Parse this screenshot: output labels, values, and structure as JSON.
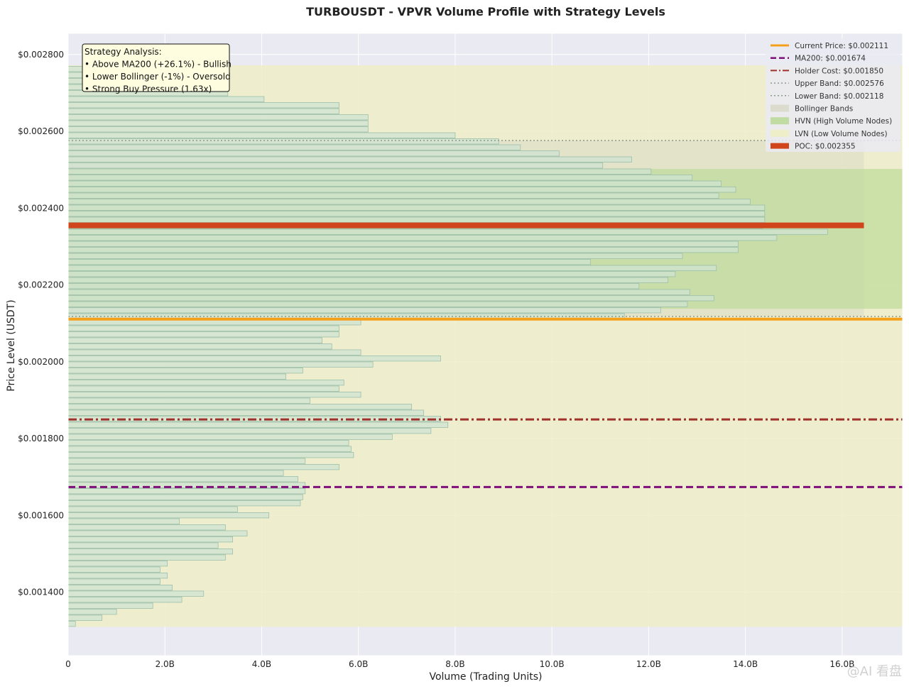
{
  "chart_data": {
    "type": "bar",
    "orientation": "horizontal",
    "title": "TURBOUSDT - VPVR Volume Profile with Strategy Levels",
    "xlabel": "Volume (Trading Units)",
    "ylabel": "Price Level (USDT)",
    "xlim": [
      0,
      17.25
    ],
    "ylim": [
      0.001235,
      0.002855
    ],
    "x_unit": "B",
    "xticks": [
      "0",
      "2.0B",
      "4.0B",
      "6.0B",
      "8.0B",
      "10.0B",
      "12.0B",
      "14.0B",
      "16.0B"
    ],
    "yticks": [
      "$0.001400",
      "$0.001600",
      "$0.001800",
      "$0.002000",
      "$0.002200",
      "$0.002400",
      "$0.002600",
      "$0.002800"
    ],
    "grid": true,
    "legend_position": "top-right",
    "bins": {
      "price_min": 0.00131,
      "price_max": 0.00277,
      "volumes": [
        0.15,
        0.7,
        1.0,
        1.75,
        2.35,
        2.8,
        2.15,
        1.9,
        2.05,
        1.9,
        2.05,
        3.25,
        3.4,
        3.1,
        3.4,
        3.7,
        3.25,
        2.3,
        4.15,
        3.5,
        4.8,
        4.85,
        4.9,
        4.9,
        4.75,
        4.45,
        5.6,
        4.9,
        5.9,
        5.85,
        5.8,
        6.7,
        7.5,
        7.85,
        7.7,
        7.35,
        7.1,
        5.0,
        6.05,
        5.6,
        5.7,
        4.5,
        4.85,
        6.3,
        7.7,
        6.05,
        5.45,
        5.25,
        5.6,
        5.6,
        6.05,
        11.5,
        12.25,
        12.8,
        13.35,
        12.85,
        11.8,
        12.4,
        12.55,
        13.4,
        10.8,
        12.7,
        13.85,
        13.85,
        14.65,
        15.7,
        14.35,
        14.4,
        14.4,
        14.4,
        14.1,
        13.45,
        13.8,
        13.5,
        12.9,
        12.05,
        11.05,
        11.65,
        10.15,
        9.35,
        8.9,
        8.0,
        6.2,
        6.2,
        6.2,
        5.6,
        5.6,
        4.05,
        3.3,
        3.3,
        2.95,
        2.75,
        2.7
      ]
    },
    "levels": {
      "current_price": 0.002111,
      "ma200": 0.001674,
      "holder_cost": 0.00185,
      "upper_band": 0.002576,
      "lower_band": 0.002118,
      "poc": 0.002355,
      "poc_volume_extent": 16.45
    },
    "zones": {
      "hvn": [
        0.002138,
        0.002502
      ],
      "lvn": [
        0.00131,
        0.002772
      ],
      "bollinger": [
        0.002118,
        0.002576
      ],
      "bollinger_volume_extent": 16.45
    },
    "colors": {
      "background": "#eaeaf2",
      "bar_fill": "#cfe3d2",
      "bar_edge": "#9dbfaa",
      "hvn": "#b5d88f",
      "lvn": "#eeeec8",
      "bollinger": "#d8d8c6",
      "current_price": "#f5a01a",
      "ma200": "#800e7a",
      "holder_cost": "#a0302a",
      "bands": "#8c9a8c",
      "poc": "#d0451b"
    },
    "legend": [
      {
        "label": "Current Price: $0.002111",
        "key": "current"
      },
      {
        "label": "MA200: $0.001674",
        "key": "ma200"
      },
      {
        "label": "Holder Cost: $0.001850",
        "key": "holder"
      },
      {
        "label": "Upper Band: $0.002576",
        "key": "band"
      },
      {
        "label": "Lower Band: $0.002118",
        "key": "band"
      },
      {
        "label": "Bollinger Bands",
        "key": "bollinger"
      },
      {
        "label": "HVN (High Volume Nodes)",
        "key": "hvn"
      },
      {
        "label": "LVN (Low Volume Nodes)",
        "key": "lvn"
      },
      {
        "label": "POC: $0.002355",
        "key": "poc"
      }
    ],
    "annotation": [
      "Strategy Analysis:",
      "• Above MA200 (+26.1%) - Bullish",
      "• Lower Bollinger (-1%) - Oversold",
      "• Strong Buy Pressure (1.63x)"
    ]
  },
  "watermark": "@AI 看盘"
}
